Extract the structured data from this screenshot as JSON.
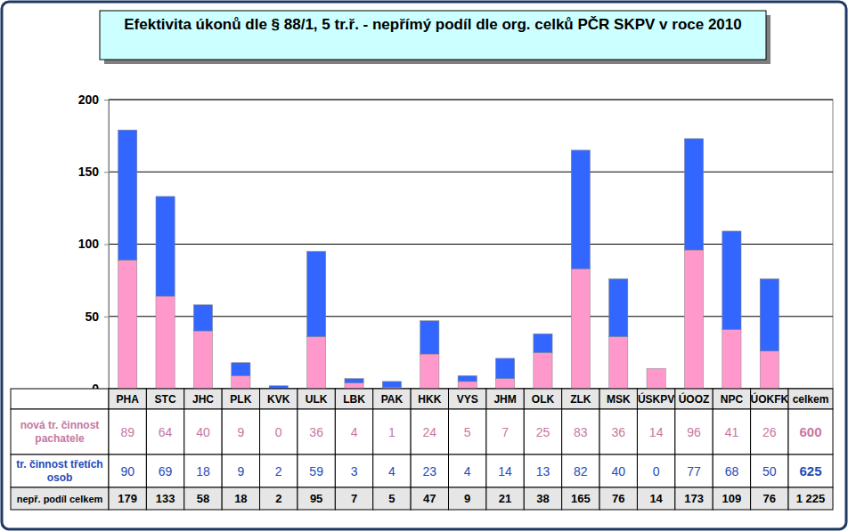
{
  "chart_data": {
    "type": "bar",
    "title": "Efektivita úkonů dle § 88/1, 5 tr.ř.  -  nepřímý podíl dle org. celků PČR SKPV v roce 2010",
    "categories": [
      "PHA",
      "STC",
      "JHC",
      "PLK",
      "KVK",
      "ULK",
      "LBK",
      "PAK",
      "HKK",
      "VYS",
      "JHM",
      "OLK",
      "ZLK",
      "MSK",
      "ÚSKPV",
      "ÚOOZ",
      "NPC",
      "ÚOKFK"
    ],
    "series": [
      {
        "name": "nová tr. činnost pachatele",
        "color": "#ff99cc",
        "values": [
          89,
          64,
          40,
          9,
          0,
          36,
          4,
          1,
          24,
          5,
          7,
          25,
          83,
          36,
          14,
          96,
          41,
          26
        ],
        "total": 600
      },
      {
        "name": "tr. činnost třetích osob",
        "color": "#3366ff",
        "values": [
          90,
          69,
          18,
          9,
          2,
          59,
          3,
          4,
          23,
          4,
          14,
          13,
          82,
          40,
          0,
          77,
          68,
          50
        ],
        "total": 625
      }
    ],
    "stacked": true,
    "ylim": [
      0,
      200
    ],
    "yticks": [
      0,
      50,
      100,
      150,
      200
    ],
    "grid": true,
    "totals_label": "nepř. podíl celkem",
    "totals": [
      179,
      133,
      58,
      18,
      2,
      95,
      7,
      5,
      47,
      9,
      21,
      38,
      165,
      76,
      14,
      173,
      109,
      76
    ],
    "total_column_label": "celkem",
    "grand_total": {
      "value": 1225,
      "label": "1 225"
    }
  }
}
